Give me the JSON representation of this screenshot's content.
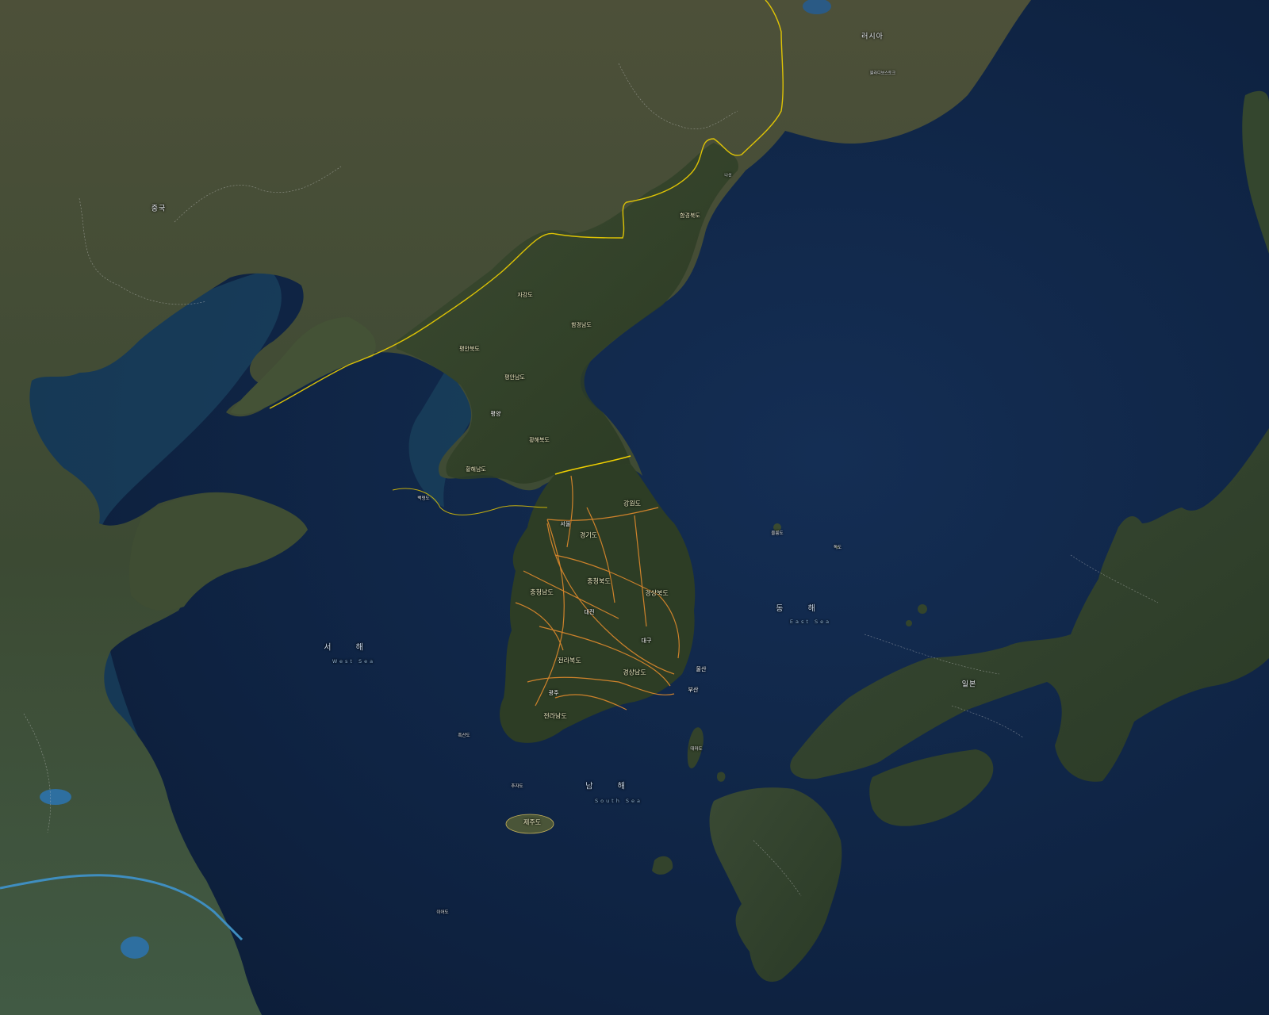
{
  "map": {
    "countries": {
      "china": "중국",
      "russia": "러시아",
      "japan": "일본"
    },
    "seas": {
      "east": {
        "ko": "동  해",
        "en": "East Sea"
      },
      "west": {
        "ko": "서  해",
        "en": "West Sea"
      },
      "south": {
        "ko": "남  해",
        "en": "South Sea"
      }
    },
    "provinces_south": {
      "gangwon": "강원도",
      "gyeonggi": "경기도",
      "chungbuk": "충청북도",
      "chungnam": "충청남도",
      "gyeongbuk": "경상북도",
      "jeonbuk": "전라북도",
      "gyeongnam": "경상남도",
      "jeonnam": "전라남도",
      "jeju": "제주도"
    },
    "provinces_north": {
      "hamnam": "함경남도",
      "hambuk": "함경북도",
      "pyeongbuk": "평안북도",
      "pyeongnam": "평안남도",
      "hwanghaebuk": "황해북도",
      "hwanghaenam": "황해남도",
      "jagang": "자강도"
    },
    "cities": {
      "seoul": "서울",
      "busan": "부산",
      "ulsan": "울산",
      "daegu": "대구",
      "daejeon": "대전",
      "gwangju": "광주",
      "pyongyang": "평양",
      "vladivostok": "블라디보스토크",
      "rason": "나선"
    },
    "islands": {
      "ulleungdo": "울릉도",
      "dokdo": "독도",
      "tsushima": "대마도",
      "ieodo": "이어도",
      "chujado": "추자도",
      "heuksando": "흑산도",
      "baengnyeongdo": "백령도"
    },
    "colors": {
      "sea": "#0f2545",
      "land_dark": "#2c3b26",
      "land_mid": "#3f4a34",
      "dmz": "#f0d000",
      "roads": "#e08a2c"
    }
  }
}
